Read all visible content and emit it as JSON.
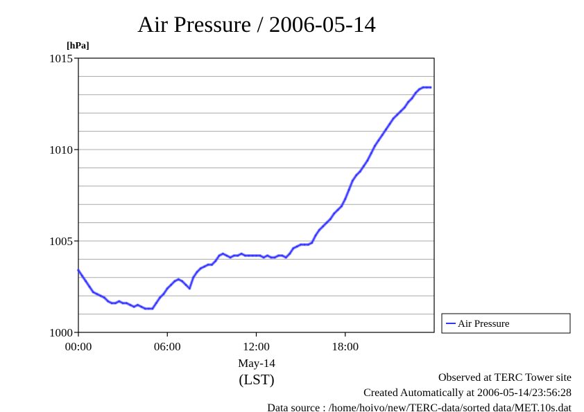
{
  "chart_data": {
    "type": "line",
    "title": "Air Pressure / 2006-05-14",
    "ylabel": "[hPa]",
    "xlabel_date": "May-14",
    "xlabel_tz": "(LST)",
    "xlim": [
      0,
      24
    ],
    "ylim": [
      1000,
      1015
    ],
    "x_ticks": [
      {
        "value": 0,
        "label": "00:00"
      },
      {
        "value": 6,
        "label": "06:00"
      },
      {
        "value": 12,
        "label": "12:00"
      },
      {
        "value": 18,
        "label": "18:00"
      }
    ],
    "y_ticks": [
      {
        "value": 1000,
        "label": "1000"
      },
      {
        "value": 1005,
        "label": "1005"
      },
      {
        "value": 1010,
        "label": "1010"
      },
      {
        "value": 1015,
        "label": "1015"
      }
    ],
    "y_gridlines": [
      1001,
      1002,
      1003,
      1004,
      1005,
      1006,
      1007,
      1008,
      1009,
      1010,
      1011,
      1012,
      1013,
      1014
    ],
    "grid": true,
    "legend_position": "right",
    "series": [
      {
        "name": "Air Pressure",
        "color": "#3333ff",
        "x": [
          0.0,
          0.25,
          0.5,
          0.75,
          1.0,
          1.25,
          1.5,
          1.75,
          2.0,
          2.25,
          2.5,
          2.75,
          3.0,
          3.25,
          3.5,
          3.75,
          4.0,
          4.25,
          4.5,
          4.75,
          5.0,
          5.25,
          5.5,
          5.75,
          6.0,
          6.25,
          6.5,
          6.75,
          7.0,
          7.25,
          7.5,
          7.75,
          8.0,
          8.25,
          8.5,
          8.75,
          9.0,
          9.25,
          9.5,
          9.75,
          10.0,
          10.25,
          10.5,
          10.75,
          11.0,
          11.25,
          11.5,
          11.75,
          12.0,
          12.25,
          12.5,
          12.75,
          13.0,
          13.25,
          13.5,
          13.75,
          14.0,
          14.25,
          14.5,
          14.75,
          15.0,
          15.25,
          15.5,
          15.75,
          16.0,
          16.25,
          16.5,
          16.75,
          17.0,
          17.25,
          17.5,
          17.75,
          18.0,
          18.25,
          18.5,
          18.75,
          19.0,
          19.25,
          19.5,
          19.75,
          20.0,
          20.25,
          20.5,
          20.75,
          21.0,
          21.25,
          21.5,
          21.75,
          22.0,
          22.25,
          22.5,
          22.75,
          23.0,
          23.25,
          23.5,
          23.75
        ],
        "values": [
          1003.4,
          1003.1,
          1002.8,
          1002.5,
          1002.2,
          1002.1,
          1002.0,
          1001.9,
          1001.7,
          1001.6,
          1001.6,
          1001.7,
          1001.6,
          1001.6,
          1001.5,
          1001.4,
          1001.5,
          1001.4,
          1001.3,
          1001.3,
          1001.3,
          1001.6,
          1001.9,
          1002.1,
          1002.4,
          1002.6,
          1002.8,
          1002.9,
          1002.8,
          1002.6,
          1002.4,
          1003.0,
          1003.3,
          1003.5,
          1003.6,
          1003.7,
          1003.7,
          1003.9,
          1004.2,
          1004.3,
          1004.2,
          1004.1,
          1004.2,
          1004.2,
          1004.3,
          1004.2,
          1004.2,
          1004.2,
          1004.2,
          1004.2,
          1004.1,
          1004.2,
          1004.1,
          1004.1,
          1004.2,
          1004.2,
          1004.1,
          1004.3,
          1004.6,
          1004.7,
          1004.8,
          1004.8,
          1004.8,
          1004.9,
          1005.3,
          1005.6,
          1005.8,
          1006.0,
          1006.2,
          1006.5,
          1006.7,
          1006.9,
          1007.3,
          1007.8,
          1008.3,
          1008.6,
          1008.8,
          1009.1,
          1009.4,
          1009.8,
          1010.2,
          1010.5,
          1010.8,
          1011.1,
          1011.4,
          1011.7,
          1011.9,
          1012.1,
          1012.3,
          1012.6,
          1012.8,
          1013.1,
          1013.3,
          1013.4,
          1013.4,
          1013.4
        ]
      }
    ]
  },
  "footer": {
    "line1": "Observed at TERC Tower site",
    "line2": "Created Automatically at 2006-05-14/23:56:28",
    "line3": "Data source : /home/hoivo/new/TERC-data/sorted  data/MET.10s.dat"
  }
}
